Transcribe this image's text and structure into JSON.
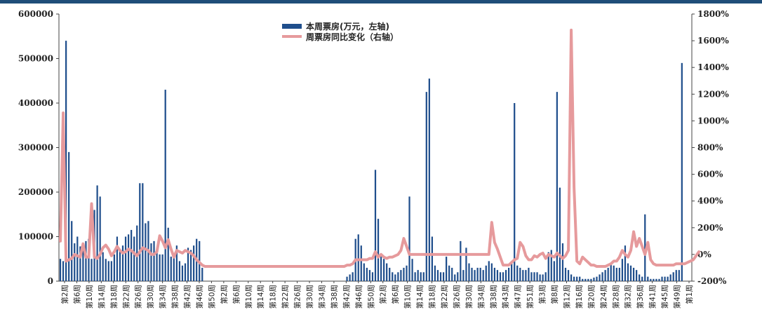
{
  "chart_data": {
    "type": "bar",
    "colors": {
      "bar": "#1f4e8c",
      "line": "#e69a9c"
    },
    "legend": {
      "placement": "top-center",
      "bar_label": "本周票房(万元，左轴)",
      "line_label": "周票房同比变化（右轴）"
    },
    "left_axis": {
      "ylim": [
        0,
        600000
      ],
      "ticks": [
        "0",
        "100000",
        "200000",
        "300000",
        "400000",
        "500000",
        "600000"
      ]
    },
    "right_axis": {
      "ylim": [
        -200,
        1800
      ],
      "unit": "%",
      "ticks": [
        "-200%",
        "0%",
        "200%",
        "400%",
        "600%",
        "800%",
        "1000%",
        "1200%",
        "1400%",
        "1600%",
        "1800%"
      ]
    },
    "week_count": 223,
    "x_tick_labels": [
      "第2周",
      "第6周",
      "第10周",
      "第14周",
      "第18周",
      "第22周",
      "第26周",
      "第30周",
      "第34周",
      "第38周",
      "第42周",
      "第46周",
      "第50周",
      "第2周",
      "第6周",
      "第10周",
      "第14周",
      "第18周",
      "第22周",
      "第26周",
      "第30周",
      "第34周",
      "第38周",
      "第42周",
      "第46周",
      "第50周",
      "第2周",
      "第6周",
      "第10周",
      "第14周",
      "第18周",
      "第22周",
      "第26周",
      "第30周",
      "第34周",
      "第38周",
      "第43周",
      "第47周",
      "第51周",
      "第3周",
      "第8周",
      "第12周",
      "第16周",
      "第20周",
      "第24周",
      "第28周",
      "第32周",
      "第36周",
      "第41周",
      "第45周",
      "第49周",
      "第1周"
    ],
    "series": [
      {
        "name": "本周票房(万元，左轴)",
        "kind": "bar",
        "values": [
          50000,
          45000,
          540000,
          290000,
          135000,
          85000,
          100000,
          78000,
          75000,
          90000,
          95000,
          50000,
          160000,
          215000,
          190000,
          65000,
          50000,
          45000,
          45000,
          60000,
          100000,
          70000,
          80000,
          100000,
          105000,
          115000,
          100000,
          125000,
          220000,
          220000,
          130000,
          135000,
          85000,
          90000,
          65000,
          60000,
          60000,
          430000,
          120000,
          55000,
          55000,
          80000,
          45000,
          35000,
          40000,
          75000,
          70000,
          80000,
          95000,
          90000,
          30000,
          0,
          0,
          0,
          0,
          0,
          0,
          0,
          0,
          0,
          0,
          0,
          0,
          0,
          0,
          0,
          0,
          0,
          0,
          0,
          0,
          0,
          0,
          0,
          0,
          0,
          0,
          0,
          0,
          0,
          0,
          0,
          0,
          0,
          0,
          0,
          0,
          0,
          0,
          0,
          0,
          0,
          0,
          0,
          0,
          0,
          0,
          0,
          0,
          0,
          0,
          10000,
          15000,
          20000,
          95000,
          105000,
          80000,
          40000,
          30000,
          25000,
          20000,
          250000,
          140000,
          55000,
          50000,
          40000,
          30000,
          20000,
          15000,
          20000,
          25000,
          30000,
          35000,
          190000,
          50000,
          20000,
          25000,
          20000,
          20000,
          425000,
          455000,
          100000,
          35000,
          25000,
          20000,
          20000,
          55000,
          35000,
          30000,
          15000,
          20000,
          90000,
          25000,
          75000,
          40000,
          30000,
          25000,
          30000,
          30000,
          25000,
          35000,
          45000,
          40000,
          30000,
          25000,
          20000,
          20000,
          25000,
          30000,
          45000,
          400000,
          35000,
          30000,
          25000,
          25000,
          30000,
          20000,
          20000,
          20000,
          15000,
          15000,
          20000,
          65000,
          70000,
          45000,
          425000,
          210000,
          85000,
          30000,
          25000,
          15000,
          10000,
          10000,
          10000,
          5000,
          5000,
          5000,
          5000,
          8000,
          10000,
          15000,
          20000,
          25000,
          30000,
          40000,
          35000,
          30000,
          30000,
          50000,
          80000,
          40000,
          35000,
          30000,
          25000,
          15000,
          10000,
          150000,
          10000,
          5000,
          5000,
          5000,
          5000,
          10000,
          10000,
          10000,
          15000,
          20000,
          25000,
          25000,
          490000
        ]
      },
      {
        "name": "周票房同比变化（右轴）",
        "kind": "line",
        "values": [
          100,
          1060,
          -50,
          -40,
          -30,
          0,
          -10,
          -20,
          80,
          -20,
          -20,
          380,
          -20,
          -30,
          0,
          50,
          70,
          40,
          -10,
          20,
          60,
          30,
          10,
          20,
          40,
          30,
          10,
          -10,
          20,
          50,
          40,
          30,
          0,
          0,
          20,
          140,
          100,
          50,
          110,
          40,
          -20,
          30,
          20,
          10,
          30,
          20,
          10,
          -10,
          -40,
          -60,
          -80,
          -90,
          -90,
          -90,
          -90,
          -90,
          -90,
          -90,
          -90,
          -90,
          -90,
          -90,
          -90,
          -90,
          -90,
          -90,
          -90,
          -90,
          -90,
          -90,
          -90,
          -90,
          -90,
          -90,
          -90,
          -90,
          -90,
          -90,
          -90,
          -90,
          -90,
          -90,
          -90,
          -90,
          -90,
          -90,
          -90,
          -90,
          -90,
          -90,
          -90,
          -90,
          -90,
          -90,
          -90,
          -90,
          -90,
          -90,
          -90,
          -90,
          -90,
          -80,
          -80,
          -70,
          -40,
          -40,
          -40,
          -40,
          -40,
          -30,
          -30,
          20,
          -20,
          0,
          -20,
          -30,
          -20,
          -20,
          -10,
          0,
          30,
          120,
          60,
          0,
          0,
          0,
          0,
          0,
          0,
          0,
          0,
          0,
          0,
          0,
          0,
          0,
          0,
          0,
          0,
          0,
          0,
          0,
          0,
          0,
          0,
          0,
          0,
          0,
          0,
          0,
          0,
          0,
          240,
          90,
          40,
          -20,
          -80,
          -80,
          -80,
          -60,
          -40,
          -30,
          90,
          60,
          -10,
          -40,
          -40,
          -10,
          -20,
          0,
          10,
          -30,
          0,
          -10,
          -20,
          10,
          -10,
          -30,
          -10,
          30,
          1680,
          500,
          -50,
          -70,
          -20,
          -40,
          -60,
          -80,
          -80,
          -90,
          -90,
          -90,
          -90,
          -80,
          -70,
          -50,
          -50,
          -20,
          30,
          0,
          -20,
          30,
          170,
          60,
          120,
          60,
          0,
          90,
          -40,
          -70,
          -80,
          -80,
          -80,
          -80,
          -80,
          -80,
          -80,
          -70,
          -70,
          -70,
          -70,
          -60,
          -50,
          -40,
          -10,
          20
        ]
      }
    ]
  }
}
